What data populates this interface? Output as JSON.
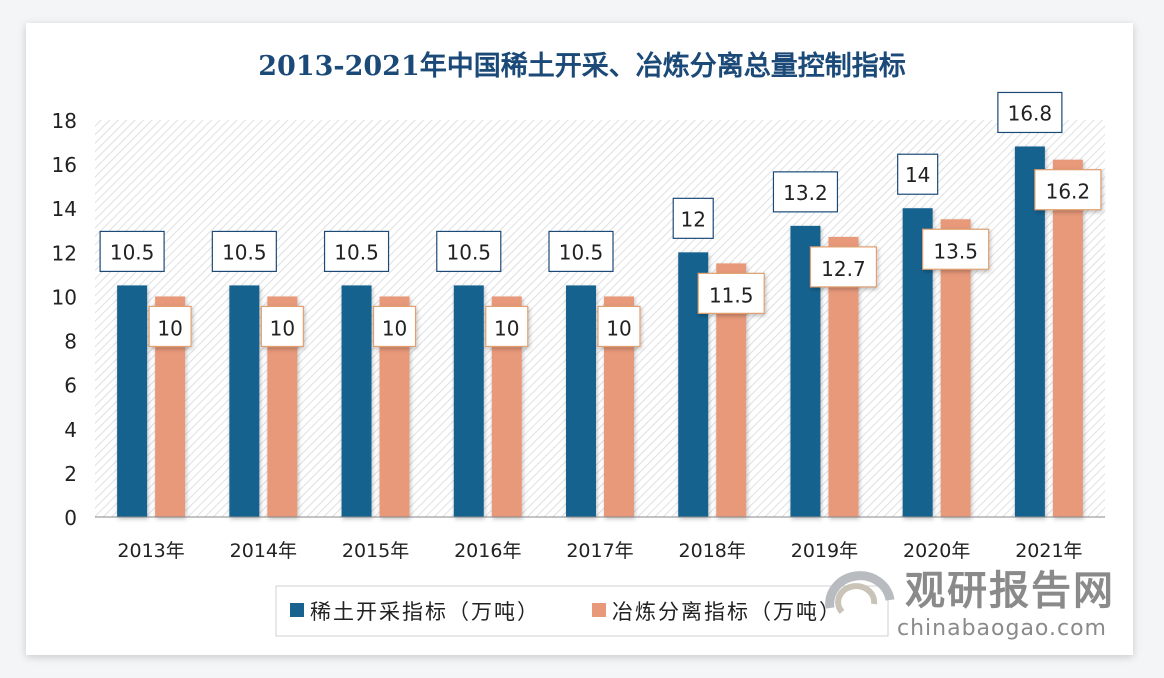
{
  "chart_data": {
    "type": "bar",
    "title": "2013-2021年中国稀土开采、冶炼分离总量控制指标",
    "categories": [
      "2013年",
      "2014年",
      "2015年",
      "2016年",
      "2017年",
      "2018年",
      "2019年",
      "2020年",
      "2021年"
    ],
    "series": [
      {
        "name": "稀土开采指标（万吨）",
        "color": "#17628f",
        "values": [
          10.5,
          10.5,
          10.5,
          10.5,
          10.5,
          12,
          13.2,
          14,
          16.8
        ]
      },
      {
        "name": "冶炼分离指标（万吨）",
        "color": "#e8997a",
        "values": [
          10,
          10,
          10,
          10,
          10,
          11.5,
          12.7,
          13.5,
          16.2
        ]
      }
    ],
    "ylim": [
      0,
      18
    ],
    "yticks": [
      0,
      2,
      4,
      6,
      8,
      10,
      12,
      14,
      16,
      18
    ],
    "xlabel": "",
    "ylabel": "",
    "grid": false,
    "legend_position": "bottom",
    "background": "diagonal-hatch"
  },
  "watermark": {
    "cn": "观研报告网",
    "en": "chinabaogao.com"
  }
}
